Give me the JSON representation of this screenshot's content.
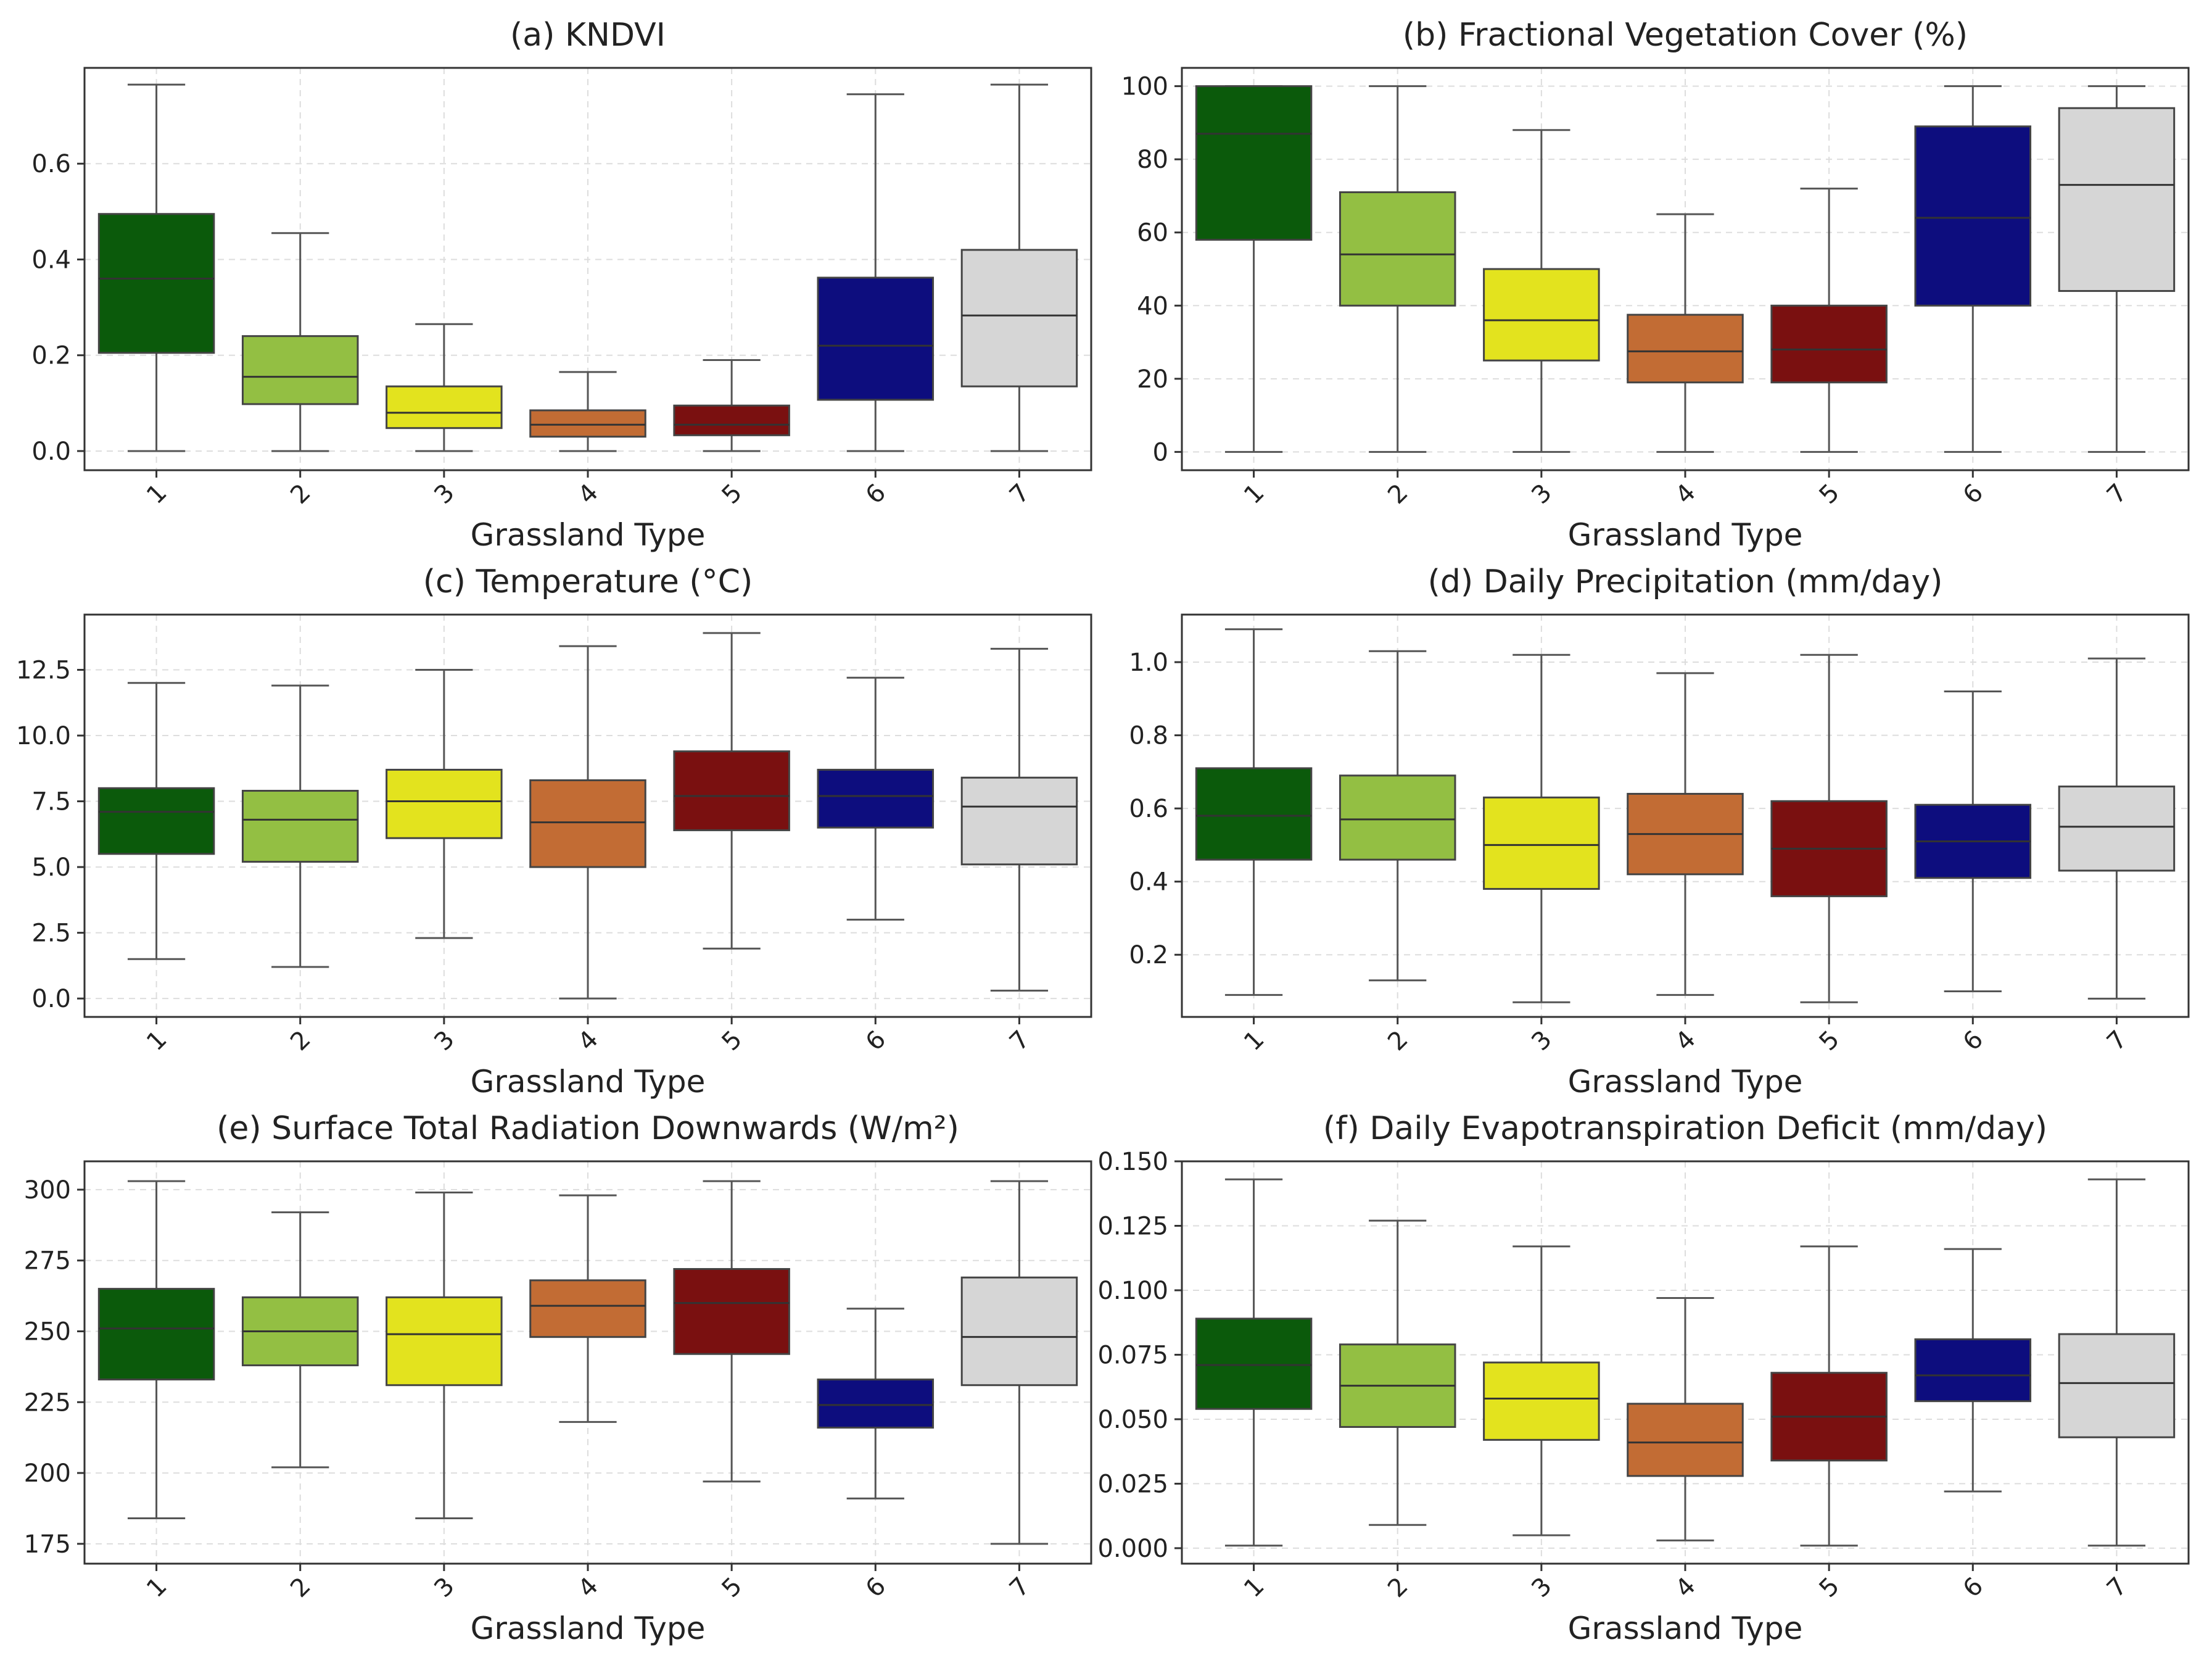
{
  "figure": {
    "xlabel": "Grassland Type"
  },
  "colors": {
    "1": "#0b5a0b",
    "2": "#93bf43",
    "3": "#e3e31e",
    "4": "#c26c34",
    "5": "#7a1010",
    "6": "#0d0d7e",
    "7": "#d6d6d6",
    "axes": "#333333",
    "grid": "#dddddd"
  },
  "chart_data": [
    {
      "type": "box",
      "title": "(a) KNDVI",
      "xlabel": "Grassland Type",
      "ylabel": "",
      "categories": [
        "1",
        "2",
        "3",
        "4",
        "5",
        "6",
        "7"
      ],
      "ylim": [
        -0.04,
        0.8
      ],
      "yticks": [
        0.0,
        0.2,
        0.4,
        0.6
      ],
      "ytick_labels": [
        "0.0",
        "0.2",
        "0.4",
        "0.6"
      ],
      "boxes": [
        {
          "min": 0.0,
          "q1": 0.205,
          "median": 0.36,
          "q3": 0.495,
          "max": 0.765
        },
        {
          "min": 0.0,
          "q1": 0.098,
          "median": 0.155,
          "q3": 0.24,
          "max": 0.455
        },
        {
          "min": 0.0,
          "q1": 0.048,
          "median": 0.08,
          "q3": 0.135,
          "max": 0.265
        },
        {
          "min": 0.0,
          "q1": 0.03,
          "median": 0.055,
          "q3": 0.085,
          "max": 0.165
        },
        {
          "min": 0.0,
          "q1": 0.033,
          "median": 0.055,
          "q3": 0.095,
          "max": 0.19
        },
        {
          "min": 0.0,
          "q1": 0.107,
          "median": 0.22,
          "q3": 0.362,
          "max": 0.745
        },
        {
          "min": 0.0,
          "q1": 0.135,
          "median": 0.283,
          "q3": 0.42,
          "max": 0.765
        }
      ]
    },
    {
      "type": "box",
      "title": "(b) Fractional Vegetation Cover (%)",
      "xlabel": "Grassland Type",
      "ylabel": "",
      "categories": [
        "1",
        "2",
        "3",
        "4",
        "5",
        "6",
        "7"
      ],
      "ylim": [
        -5,
        105
      ],
      "yticks": [
        0,
        20,
        40,
        60,
        80,
        100
      ],
      "ytick_labels": [
        "0",
        "20",
        "40",
        "60",
        "80",
        "100"
      ],
      "boxes": [
        {
          "min": 0,
          "q1": 58,
          "median": 87,
          "q3": 100,
          "max": 100
        },
        {
          "min": 0,
          "q1": 40,
          "median": 54,
          "q3": 71,
          "max": 100
        },
        {
          "min": 0,
          "q1": 25,
          "median": 36,
          "q3": 50,
          "max": 88
        },
        {
          "min": 0,
          "q1": 19,
          "median": 27.5,
          "q3": 37.5,
          "max": 65
        },
        {
          "min": 0,
          "q1": 19,
          "median": 28,
          "q3": 40,
          "max": 72
        },
        {
          "min": 0,
          "q1": 40,
          "median": 64,
          "q3": 89,
          "max": 100
        },
        {
          "min": 0,
          "q1": 44,
          "median": 73,
          "q3": 94,
          "max": 100
        }
      ]
    },
    {
      "type": "box",
      "title": "(c) Temperature (°C)",
      "xlabel": "Grassland Type",
      "ylabel": "",
      "categories": [
        "1",
        "2",
        "3",
        "4",
        "5",
        "6",
        "7"
      ],
      "ylim": [
        -0.7,
        14.6
      ],
      "yticks": [
        0,
        2.5,
        5,
        7.5,
        10,
        12.5
      ],
      "ytick_labels": [
        "0.0",
        "2.5",
        "5.0",
        "7.5",
        "10.0",
        "12.5"
      ],
      "boxes": [
        {
          "min": 1.5,
          "q1": 5.5,
          "median": 7.1,
          "q3": 8.0,
          "max": 12.0
        },
        {
          "min": 1.2,
          "q1": 5.2,
          "median": 6.8,
          "q3": 7.9,
          "max": 11.9
        },
        {
          "min": 2.3,
          "q1": 6.1,
          "median": 7.5,
          "q3": 8.7,
          "max": 12.5
        },
        {
          "min": 0.0,
          "q1": 5.0,
          "median": 6.7,
          "q3": 8.3,
          "max": 13.4
        },
        {
          "min": 1.9,
          "q1": 6.4,
          "median": 7.7,
          "q3": 9.4,
          "max": 13.9
        },
        {
          "min": 3.0,
          "q1": 6.5,
          "median": 7.7,
          "q3": 8.7,
          "max": 12.2
        },
        {
          "min": 0.3,
          "q1": 5.1,
          "median": 7.3,
          "q3": 8.4,
          "max": 13.3
        }
      ]
    },
    {
      "type": "box",
      "title": "(d) Daily Precipitation (mm/day)",
      "xlabel": "Grassland Type",
      "ylabel": "",
      "categories": [
        "1",
        "2",
        "3",
        "4",
        "5",
        "6",
        "7"
      ],
      "ylim": [
        0.03,
        1.13
      ],
      "yticks": [
        0.2,
        0.4,
        0.6,
        0.8,
        1.0
      ],
      "ytick_labels": [
        "0.2",
        "0.4",
        "0.6",
        "0.8",
        "1.0"
      ],
      "boxes": [
        {
          "min": 0.09,
          "q1": 0.46,
          "median": 0.58,
          "q3": 0.71,
          "max": 1.09
        },
        {
          "min": 0.13,
          "q1": 0.46,
          "median": 0.57,
          "q3": 0.69,
          "max": 1.03
        },
        {
          "min": 0.07,
          "q1": 0.38,
          "median": 0.5,
          "q3": 0.63,
          "max": 1.02
        },
        {
          "min": 0.09,
          "q1": 0.42,
          "median": 0.53,
          "q3": 0.64,
          "max": 0.97
        },
        {
          "min": 0.07,
          "q1": 0.36,
          "median": 0.49,
          "q3": 0.62,
          "max": 1.02
        },
        {
          "min": 0.1,
          "q1": 0.41,
          "median": 0.51,
          "q3": 0.61,
          "max": 0.92
        },
        {
          "min": 0.08,
          "q1": 0.43,
          "median": 0.55,
          "q3": 0.66,
          "max": 1.01
        }
      ]
    },
    {
      "type": "box",
      "title": "(e) Surface Total Radiation Downwards (W/m²)",
      "xlabel": "Grassland Type",
      "ylabel": "",
      "categories": [
        "1",
        "2",
        "3",
        "4",
        "5",
        "6",
        "7"
      ],
      "ylim": [
        168,
        310
      ],
      "yticks": [
        175,
        200,
        225,
        250,
        275,
        300
      ],
      "ytick_labels": [
        "175",
        "200",
        "225",
        "250",
        "275",
        "300"
      ],
      "boxes": [
        {
          "min": 184,
          "q1": 233,
          "median": 251,
          "q3": 265,
          "max": 303
        },
        {
          "min": 202,
          "q1": 238,
          "median": 250,
          "q3": 262,
          "max": 292
        },
        {
          "min": 184,
          "q1": 231,
          "median": 249,
          "q3": 262,
          "max": 299
        },
        {
          "min": 218,
          "q1": 248,
          "median": 259,
          "q3": 268,
          "max": 298
        },
        {
          "min": 197,
          "q1": 242,
          "median": 260,
          "q3": 272,
          "max": 303
        },
        {
          "min": 191,
          "q1": 216,
          "median": 224,
          "q3": 233,
          "max": 258
        },
        {
          "min": 175,
          "q1": 231,
          "median": 248,
          "q3": 269,
          "max": 303
        }
      ]
    },
    {
      "type": "box",
      "title": "(f) Daily Evapotranspiration Deficit (mm/day)",
      "xlabel": "Grassland Type",
      "ylabel": "",
      "categories": [
        "1",
        "2",
        "3",
        "4",
        "5",
        "6",
        "7"
      ],
      "ylim": [
        -0.006,
        0.15
      ],
      "yticks": [
        0.0,
        0.025,
        0.05,
        0.075,
        0.1,
        0.125,
        0.15
      ],
      "ytick_labels": [
        "0.000",
        "0.025",
        "0.050",
        "0.075",
        "0.100",
        "0.125",
        "0.150"
      ],
      "boxes": [
        {
          "min": 0.001,
          "q1": 0.054,
          "median": 0.071,
          "q3": 0.089,
          "max": 0.143
        },
        {
          "min": 0.009,
          "q1": 0.047,
          "median": 0.063,
          "q3": 0.079,
          "max": 0.127
        },
        {
          "min": 0.005,
          "q1": 0.042,
          "median": 0.058,
          "q3": 0.072,
          "max": 0.117
        },
        {
          "min": 0.003,
          "q1": 0.028,
          "median": 0.041,
          "q3": 0.056,
          "max": 0.097
        },
        {
          "min": 0.001,
          "q1": 0.034,
          "median": 0.051,
          "q3": 0.068,
          "max": 0.117
        },
        {
          "min": 0.022,
          "q1": 0.057,
          "median": 0.067,
          "q3": 0.081,
          "max": 0.116
        },
        {
          "min": 0.001,
          "q1": 0.043,
          "median": 0.064,
          "q3": 0.083,
          "max": 0.143
        }
      ]
    }
  ]
}
